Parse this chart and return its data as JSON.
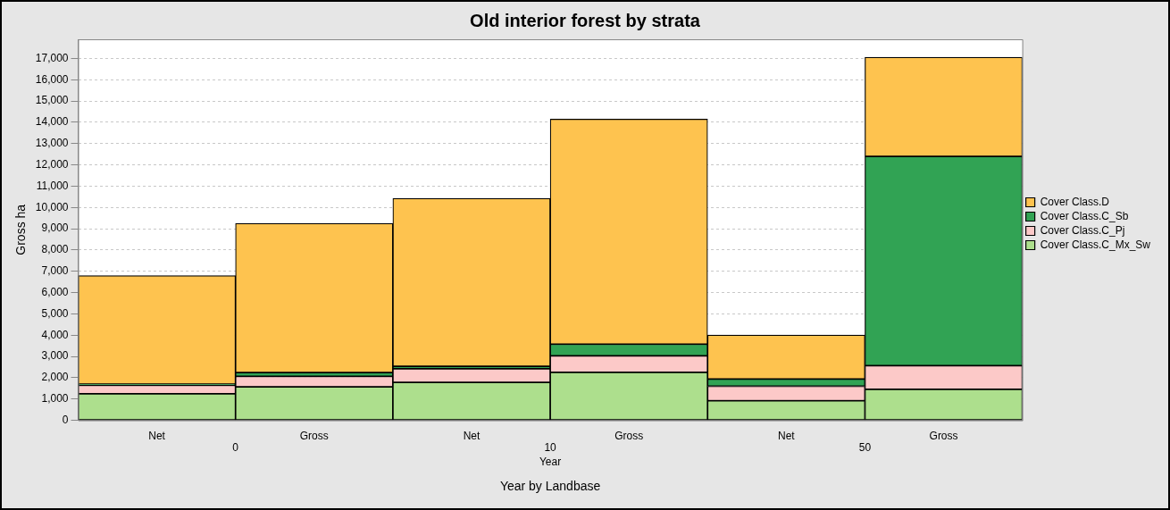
{
  "chart_data": {
    "type": "bar",
    "title": "Old interior forest by strata",
    "xlabel": "Year",
    "ylabel": "Gross ha",
    "categories": [
      "Net",
      "Gross",
      "Net",
      "Gross",
      "Net",
      "Gross"
    ],
    "stacked": true,
    "grid": "y",
    "legend": "right",
    "ylim": [
      0,
      17900
    ],
    "yticks": [
      0,
      {
        "value": 1000,
        "label": "1,000"
      },
      {
        "value": 2000,
        "label": "2,000"
      },
      {
        "value": 3000,
        "label": "3,000"
      },
      {
        "value": 4000,
        "label": "4,000"
      },
      {
        "value": 5000,
        "label": "5,000"
      },
      {
        "value": 6000,
        "label": "6,000"
      },
      {
        "value": 7000,
        "label": "7,000"
      },
      {
        "value": 8000,
        "label": "8,000"
      },
      {
        "value": 9000,
        "label": "9,000"
      },
      {
        "value": 10000,
        "label": "10,000"
      },
      {
        "value": 11000,
        "label": "11,000"
      },
      {
        "value": 12000,
        "label": "12,000"
      },
      {
        "value": 13000,
        "label": "13,000"
      },
      {
        "value": 14000,
        "label": "14,000"
      },
      {
        "value": 15000,
        "label": "15,000"
      },
      {
        "value": 16000,
        "label": "16,000"
      },
      {
        "value": 17000,
        "label": "17,000"
      }
    ],
    "series": [
      {
        "name": "Cover Class.C_Mx_Sw",
        "color": "#addf8d",
        "values": [
          1250,
          1570,
          1780,
          2250,
          920,
          1460
        ]
      },
      {
        "name": "Cover Class.C_Pj",
        "color": "#fcc9c8",
        "values": [
          400,
          500,
          640,
          780,
          680,
          1110
        ]
      },
      {
        "name": "Cover Class.C_Sb",
        "color": "#31a354",
        "values": [
          50,
          170,
          120,
          550,
          340,
          9830
        ]
      },
      {
        "name": "Cover Class.D",
        "color": "#fec34f",
        "values": [
          5100,
          7010,
          7890,
          10570,
          2070,
          4660
        ]
      }
    ],
    "annotations": [
      "0",
      "10",
      "50",
      "Year by Landbase"
    ]
  }
}
